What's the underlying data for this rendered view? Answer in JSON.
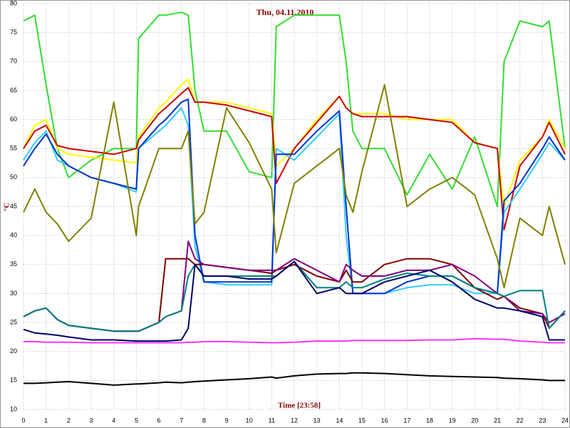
{
  "chart_data": {
    "type": "line",
    "title": "Thu, 04.11.2010",
    "xlabel": "Time [23:58]",
    "ylabel": "°C",
    "x": [
      0,
      0.5,
      1,
      1.5,
      2,
      3,
      4,
      5,
      5.1,
      6,
      6.3,
      7,
      7.3,
      7.6,
      8,
      9,
      10,
      11,
      11.2,
      12,
      13,
      14,
      14.3,
      14.6,
      15,
      16,
      17,
      18,
      19,
      20,
      21,
      21.3,
      22,
      23,
      23.3,
      24
    ],
    "xlim": [
      0,
      24
    ],
    "xticks": [
      0,
      1,
      2,
      3,
      4,
      5,
      6,
      7,
      8,
      9,
      10,
      11,
      12,
      13,
      14,
      15,
      16,
      17,
      18,
      19,
      20,
      21,
      22,
      23,
      24
    ],
    "ylim": [
      10,
      80
    ],
    "yticks": [
      10,
      15,
      20,
      25,
      30,
      35,
      40,
      45,
      50,
      55,
      60,
      65,
      70,
      75,
      80
    ],
    "grid": true,
    "series": [
      {
        "color": "#33dd33",
        "values": [
          77,
          78,
          66,
          55,
          50,
          53,
          55,
          55,
          74,
          78,
          78,
          78.5,
          78,
          65,
          58,
          58,
          51,
          50,
          76,
          78,
          78,
          78,
          70,
          58,
          55,
          55,
          47,
          54,
          48,
          57,
          45,
          70,
          77,
          76,
          77,
          55
        ]
      },
      {
        "color": "#ffff00",
        "values": [
          55,
          59,
          60,
          55,
          54,
          53.5,
          53,
          52.5,
          57,
          62,
          63,
          66,
          67,
          63,
          63,
          63,
          62,
          61,
          52,
          55,
          60,
          64,
          62,
          61,
          61,
          61,
          60,
          60,
          60,
          56,
          55,
          45,
          53,
          57,
          60,
          55
        ]
      },
      {
        "color": "#cc0000",
        "values": [
          55,
          58,
          59,
          55.5,
          55,
          54.5,
          54,
          55,
          56.5,
          61,
          62,
          64.5,
          65.5,
          63,
          63,
          62.5,
          61.5,
          60.5,
          49,
          55,
          59.5,
          64,
          62,
          61,
          60.5,
          60.5,
          60.5,
          60,
          59.5,
          56,
          55,
          41,
          52,
          57,
          59.5,
          54
        ]
      },
      {
        "color": "#33ccff",
        "values": [
          53,
          56,
          58,
          53,
          52,
          50,
          49,
          47.5,
          55,
          58,
          59,
          62,
          59,
          38,
          32,
          31.5,
          31.5,
          31.5,
          55,
          53,
          57,
          61,
          40,
          30,
          30,
          30,
          31,
          31.5,
          31.5,
          30,
          30,
          44,
          48,
          54,
          56,
          53
        ]
      },
      {
        "color": "#0033cc",
        "values": [
          52,
          55,
          57.5,
          54,
          52,
          50,
          49,
          48,
          55,
          59,
          60,
          63,
          63.5,
          40,
          32,
          32,
          32,
          32,
          54,
          54,
          58,
          61.5,
          45,
          30,
          30,
          30,
          32,
          33,
          33,
          31,
          30,
          46,
          49,
          55,
          57,
          53
        ]
      },
      {
        "color": "#808000",
        "values": [
          44,
          48,
          44,
          42,
          39,
          43,
          63,
          40,
          45,
          55,
          55,
          55,
          58,
          42,
          44,
          62,
          56,
          48,
          37,
          49,
          52,
          55,
          47,
          44,
          51,
          66,
          45,
          48,
          50,
          47,
          36,
          31,
          43,
          40,
          45,
          35
        ]
      },
      {
        "color": "#800000",
        "values": [
          26,
          27,
          27.5,
          25.5,
          24.5,
          24,
          23.5,
          23.5,
          23.5,
          25,
          36,
          36,
          36,
          35,
          35,
          34.5,
          34,
          33.5,
          34,
          35,
          33,
          32,
          34,
          32,
          32,
          35,
          36,
          36,
          35,
          31,
          29,
          29.5,
          27.5,
          26.5,
          24,
          27
        ]
      },
      {
        "color": "#800080",
        "values": [
          26,
          27,
          27.5,
          25.5,
          24.5,
          24,
          23.5,
          23.5,
          23.5,
          25,
          26,
          27,
          39,
          36,
          35,
          34.5,
          34,
          34,
          34,
          36,
          34,
          32,
          35,
          34,
          33,
          33,
          34,
          34,
          35,
          33,
          30,
          29.5,
          27,
          26.5,
          25,
          26.5
        ]
      },
      {
        "color": "#008080",
        "values": [
          26,
          27,
          27.5,
          25.5,
          24.5,
          24,
          23.5,
          23.5,
          23.5,
          25,
          26,
          27,
          33,
          35,
          33,
          33,
          33,
          33,
          33,
          35.5,
          31,
          31,
          32,
          31,
          31,
          32.5,
          33.5,
          33,
          33,
          31,
          30,
          29.5,
          30.5,
          30.5,
          24,
          27
        ]
      },
      {
        "color": "#000066",
        "values": [
          23.8,
          23.2,
          23,
          22.8,
          22.5,
          22,
          22,
          21.8,
          21.8,
          21.8,
          21.8,
          22,
          24,
          35,
          33,
          33,
          32.5,
          32.5,
          33,
          35.5,
          30,
          31,
          30,
          30,
          30,
          32,
          33,
          34,
          32,
          29,
          27.5,
          27.5,
          27,
          26,
          22,
          22
        ]
      },
      {
        "color": "#ff33ff",
        "values": [
          21.7,
          21.7,
          21.6,
          21.6,
          21.6,
          21.5,
          21.5,
          21.5,
          21.5,
          21.5,
          21.5,
          21.5,
          21.6,
          21.6,
          21.7,
          21.7,
          21.6,
          21.5,
          21.5,
          21.6,
          21.8,
          21.8,
          21.8,
          21.9,
          21.9,
          21.9,
          21.9,
          22,
          22,
          22.2,
          22.1,
          22.1,
          21.8,
          21.6,
          21.5,
          21.5
        ]
      },
      {
        "color": "#000000",
        "values": [
          14.5,
          14.5,
          14.6,
          14.7,
          14.8,
          14.5,
          14.2,
          14.4,
          14.4,
          14.6,
          14.7,
          14.6,
          14.7,
          14.8,
          14.9,
          15.1,
          15.3,
          15.6,
          15.4,
          15.8,
          16.1,
          16.2,
          16.2,
          16.3,
          16.3,
          16.2,
          16,
          15.8,
          15.7,
          15.6,
          15.5,
          15.4,
          15.3,
          15.1,
          15,
          15
        ]
      }
    ]
  }
}
